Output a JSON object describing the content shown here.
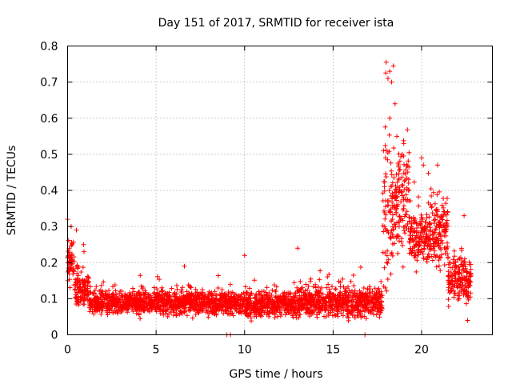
{
  "chart_data": {
    "type": "scatter",
    "title": "Day 151 of 2017, SRMTID for receiver ista",
    "xlabel": "GPS time / hours",
    "ylabel": "SRMTID / TECUs",
    "xlim": [
      0,
      24
    ],
    "ylim": [
      0,
      0.8
    ],
    "x_ticks": [
      0,
      5,
      10,
      15,
      20
    ],
    "y_ticks": [
      0,
      0.1,
      0.2,
      0.3,
      0.4,
      0.5,
      0.6,
      0.7,
      0.8
    ],
    "x_tick_labels": [
      "0",
      "5",
      "10",
      "15",
      "20"
    ],
    "y_tick_labels": [
      "0",
      "0.1",
      "0.2",
      "0.3",
      "0.4",
      "0.5",
      "0.6",
      "0.7",
      "0.8"
    ],
    "grid": true,
    "marker": "+",
    "color": "#ff0000",
    "series": [
      {
        "name": "SRMTID",
        "segments": [
          {
            "x0": 0.0,
            "x1": 0.4,
            "center": 0.2,
            "spread": 0.09
          },
          {
            "x0": 0.4,
            "x1": 1.2,
            "center": 0.13,
            "spread": 0.08
          },
          {
            "x0": 1.2,
            "x1": 4.0,
            "center": 0.09,
            "spread": 0.045
          },
          {
            "x0": 4.0,
            "x1": 9.0,
            "center": 0.09,
            "spread": 0.05
          },
          {
            "x0": 9.0,
            "x1": 13.0,
            "center": 0.085,
            "spread": 0.05
          },
          {
            "x0": 13.0,
            "x1": 17.8,
            "center": 0.09,
            "spread": 0.06
          },
          {
            "x0": 17.8,
            "x1": 18.4,
            "center": 0.35,
            "spread": 0.3
          },
          {
            "x0": 18.4,
            "x1": 19.3,
            "center": 0.38,
            "spread": 0.22
          },
          {
            "x0": 19.3,
            "x1": 20.5,
            "center": 0.27,
            "spread": 0.12
          },
          {
            "x0": 20.5,
            "x1": 21.5,
            "center": 0.28,
            "spread": 0.14
          },
          {
            "x0": 21.5,
            "x1": 22.8,
            "center": 0.16,
            "spread": 0.09
          }
        ],
        "highlights": [
          {
            "x": 18.0,
            "y": 0.755
          },
          {
            "x": 18.4,
            "y": 0.745
          },
          {
            "x": 18.2,
            "y": 0.73
          },
          {
            "x": 18.1,
            "y": 0.71
          },
          {
            "x": 18.3,
            "y": 0.7
          },
          {
            "x": 18.5,
            "y": 0.64
          },
          {
            "x": 18.2,
            "y": 0.6
          },
          {
            "x": 18.6,
            "y": 0.55
          },
          {
            "x": 18.9,
            "y": 0.5
          },
          {
            "x": 20.0,
            "y": 0.49
          },
          {
            "x": 20.1,
            "y": 0.47
          },
          {
            "x": 20.9,
            "y": 0.47
          },
          {
            "x": 0.0,
            "y": 0.32
          },
          {
            "x": 0.2,
            "y": 0.3
          },
          {
            "x": 0.5,
            "y": 0.29
          },
          {
            "x": 0.9,
            "y": 0.25
          },
          {
            "x": 9.0,
            "y": 0.0
          },
          {
            "x": 9.2,
            "y": 0.0
          },
          {
            "x": 16.8,
            "y": 0.0
          },
          {
            "x": 22.6,
            "y": 0.04
          },
          {
            "x": 22.4,
            "y": 0.33
          },
          {
            "x": 10.0,
            "y": 0.22
          },
          {
            "x": 13.0,
            "y": 0.24
          },
          {
            "x": 6.6,
            "y": 0.19
          }
        ]
      }
    ]
  }
}
